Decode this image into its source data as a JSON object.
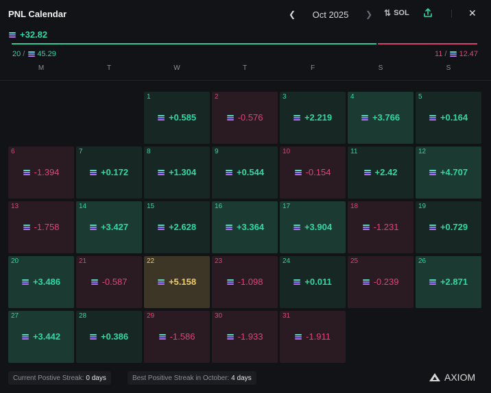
{
  "header": {
    "title": "PNL Calendar",
    "month": "Oct 2025",
    "currency": "SOL",
    "icons": [
      "chevron-left-icon",
      "chevron-right-icon",
      "swap-icon",
      "share-icon",
      "close-icon"
    ]
  },
  "summary": {
    "total": "+32.82",
    "positive_days": "20",
    "positive_amount": "45.29",
    "negative_days": "11",
    "negative_amount": "12.47",
    "positive_share": 0.784
  },
  "weekdays": [
    "M",
    "T",
    "W",
    "T",
    "F",
    "S",
    "S"
  ],
  "colors": {
    "positive": "#2fd9a6",
    "negative": "#e0457a",
    "best": "#f0cd6b",
    "background": "#121316"
  },
  "days": [
    {
      "day": "1",
      "value": "+0.585",
      "type": "pos"
    },
    {
      "day": "2",
      "value": "-0.576",
      "type": "neg"
    },
    {
      "day": "3",
      "value": "+2.219",
      "type": "pos"
    },
    {
      "day": "4",
      "value": "+3.766",
      "type": "pos-strong"
    },
    {
      "day": "5",
      "value": "+0.164",
      "type": "pos"
    },
    {
      "day": "6",
      "value": "-1.394",
      "type": "neg"
    },
    {
      "day": "7",
      "value": "+0.172",
      "type": "pos"
    },
    {
      "day": "8",
      "value": "+1.304",
      "type": "pos"
    },
    {
      "day": "9",
      "value": "+0.544",
      "type": "pos"
    },
    {
      "day": "10",
      "value": "-0.154",
      "type": "neg"
    },
    {
      "day": "11",
      "value": "+2.42",
      "type": "pos"
    },
    {
      "day": "12",
      "value": "+4.707",
      "type": "pos-strong"
    },
    {
      "day": "13",
      "value": "-1.758",
      "type": "neg"
    },
    {
      "day": "14",
      "value": "+3.427",
      "type": "pos-strong"
    },
    {
      "day": "15",
      "value": "+2.628",
      "type": "pos"
    },
    {
      "day": "16",
      "value": "+3.364",
      "type": "pos-strong"
    },
    {
      "day": "17",
      "value": "+3.904",
      "type": "pos-strong"
    },
    {
      "day": "18",
      "value": "-1.231",
      "type": "neg"
    },
    {
      "day": "19",
      "value": "+0.729",
      "type": "pos"
    },
    {
      "day": "20",
      "value": "+3.486",
      "type": "pos-strong"
    },
    {
      "day": "21",
      "value": "-0.587",
      "type": "neg"
    },
    {
      "day": "22",
      "value": "+5.158",
      "type": "best"
    },
    {
      "day": "23",
      "value": "-1.098",
      "type": "neg"
    },
    {
      "day": "24",
      "value": "+0.011",
      "type": "pos"
    },
    {
      "day": "25",
      "value": "-0.239",
      "type": "neg"
    },
    {
      "day": "26",
      "value": "+2.871",
      "type": "pos-strong"
    },
    {
      "day": "27",
      "value": "+3.442",
      "type": "pos-strong"
    },
    {
      "day": "28",
      "value": "+0.386",
      "type": "pos"
    },
    {
      "day": "29",
      "value": "-1.586",
      "type": "neg"
    },
    {
      "day": "30",
      "value": "-1.933",
      "type": "neg"
    },
    {
      "day": "31",
      "value": "-1.911",
      "type": "neg"
    }
  ],
  "first_weekday_index": 2,
  "footer": {
    "current_streak_label": "Current Postive Streak:",
    "current_streak_value": "0 days",
    "best_streak_label": "Best Positive Streak in October:",
    "best_streak_value": "4 days",
    "brand": "AXIOM"
  }
}
